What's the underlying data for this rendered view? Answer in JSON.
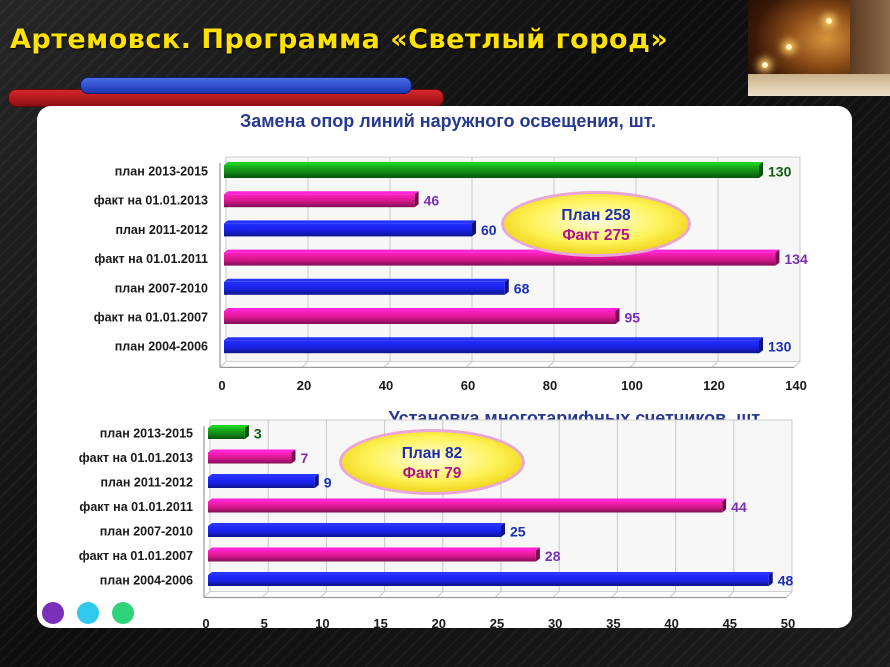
{
  "slide": {
    "title": "Артемовск. Программа «Светлый город»",
    "colors": {
      "title": "#ffe200",
      "dots": [
        "#7a2fb8",
        "#2ec9ec",
        "#2ed37a"
      ]
    }
  },
  "chart_data": [
    {
      "type": "bar",
      "orientation": "horizontal",
      "title": "Замена опор линий наружного освещения, шт.",
      "categories": [
        "план 2013-2015",
        "факт на 01.01.2013",
        "план 2011-2012",
        "факт на 01.01.2011",
        "план 2007-2010",
        "факт на 01.01.2007",
        "план 2004-2006"
      ],
      "values": [
        130,
        46,
        60,
        134,
        68,
        95,
        130
      ],
      "bar_colors": [
        "#138a16",
        "#d8188e",
        "#1a22e8",
        "#d8188e",
        "#1a22e8",
        "#d8188e",
        "#1a22e8"
      ],
      "label_colors": [
        "#0f5e10",
        "#7a2fb8",
        "#1a2fb8",
        "#7a2fb8",
        "#1a2fb8",
        "#7a2fb8",
        "#1a2fb8"
      ],
      "xlim": [
        0,
        140
      ],
      "xticks": [
        0,
        20,
        40,
        60,
        80,
        100,
        120,
        140
      ],
      "grid": true,
      "callout": {
        "line1": "План 258",
        "line2": "Факт 275",
        "line1_color": "#1c2fb0",
        "line2_color": "#b0158a"
      }
    },
    {
      "type": "bar",
      "orientation": "horizontal",
      "title": "Установка многотарифных счетчиков, шт.",
      "categories": [
        "план 2013-2015",
        "факт на 01.01.2013",
        "план 2011-2012",
        "факт на 01.01.2011",
        "план 2007-2010",
        "факт на 01.01.2007",
        "план 2004-2006"
      ],
      "values": [
        3,
        7,
        9,
        44,
        25,
        28,
        48
      ],
      "bar_colors": [
        "#138a16",
        "#d8188e",
        "#1a22e8",
        "#d8188e",
        "#1a22e8",
        "#d8188e",
        "#1a22e8"
      ],
      "label_colors": [
        "#0f5e10",
        "#7a2fb8",
        "#1a2fb8",
        "#7a2fb8",
        "#1a2fb8",
        "#7a2fb8",
        "#1a2fb8"
      ],
      "xlim": [
        0,
        50
      ],
      "xticks": [
        0,
        5,
        10,
        15,
        20,
        25,
        30,
        35,
        40,
        45,
        50
      ],
      "grid": true,
      "callout": {
        "line1": "План 82",
        "line2": "Факт 79",
        "line1_color": "#1c2fb0",
        "line2_color": "#b0158a"
      }
    }
  ]
}
